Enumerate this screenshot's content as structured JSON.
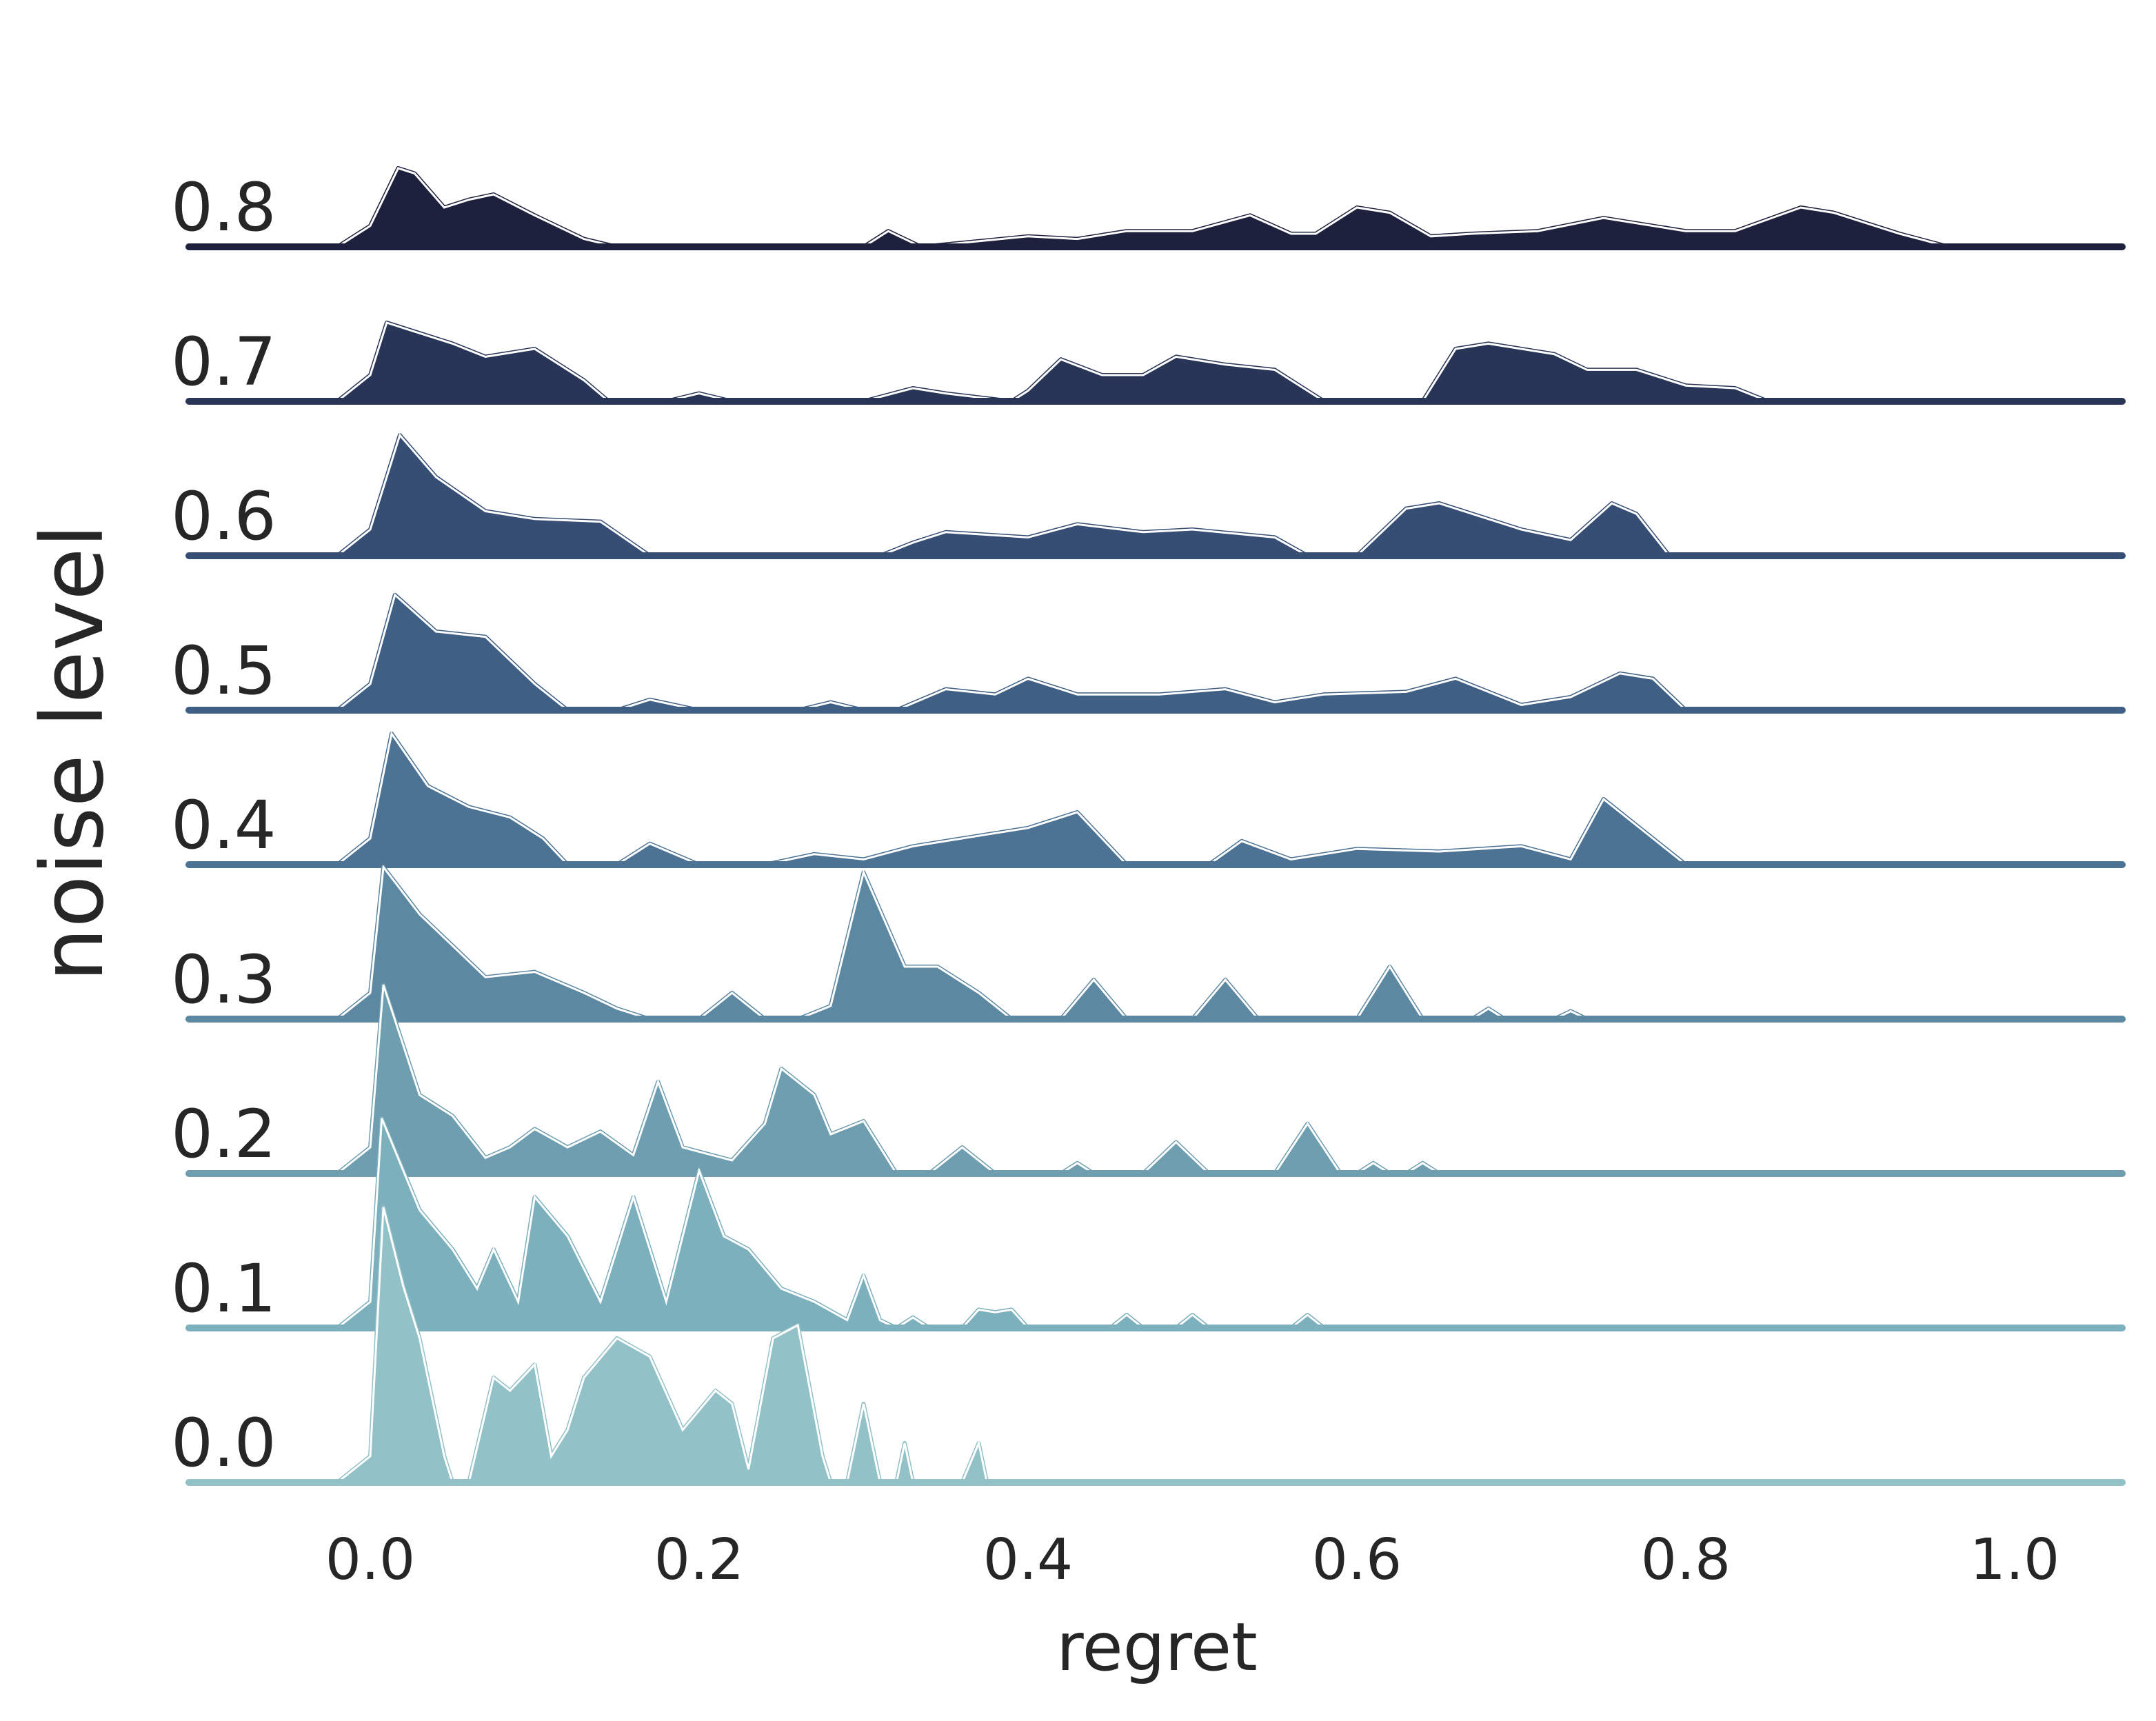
{
  "chart_data": {
    "type": "area",
    "style": "ridgeline",
    "xlabel": "regret",
    "ylabel": "noise level",
    "xlim": [
      -0.11,
      1.07
    ],
    "x_ticks": [
      "0.0",
      "0.2",
      "0.4",
      "0.6",
      "0.8",
      "1.0"
    ],
    "x_tick_values": [
      0.0,
      0.2,
      0.4,
      0.6,
      0.8,
      1.0
    ],
    "grid": false,
    "series": [
      {
        "name": "0.8",
        "color": "#1e213d",
        "points": [
          [
            -0.02,
            0
          ],
          [
            0.0,
            0.08
          ],
          [
            0.017,
            0.3
          ],
          [
            0.027,
            0.28
          ],
          [
            0.045,
            0.15
          ],
          [
            0.06,
            0.18
          ],
          [
            0.075,
            0.2
          ],
          [
            0.1,
            0.12
          ],
          [
            0.13,
            0.03
          ],
          [
            0.15,
            0
          ],
          [
            0.3,
            0
          ],
          [
            0.315,
            0.06
          ],
          [
            0.335,
            0
          ],
          [
            0.4,
            0.04
          ],
          [
            0.43,
            0.03
          ],
          [
            0.46,
            0.06
          ],
          [
            0.5,
            0.06
          ],
          [
            0.535,
            0.12
          ],
          [
            0.56,
            0.05
          ],
          [
            0.575,
            0.05
          ],
          [
            0.6,
            0.15
          ],
          [
            0.62,
            0.13
          ],
          [
            0.645,
            0.04
          ],
          [
            0.67,
            0.05
          ],
          [
            0.71,
            0.06
          ],
          [
            0.75,
            0.11
          ],
          [
            0.8,
            0.06
          ],
          [
            0.83,
            0.06
          ],
          [
            0.87,
            0.15
          ],
          [
            0.89,
            0.13
          ],
          [
            0.93,
            0.05
          ],
          [
            0.96,
            0
          ],
          [
            1.065,
            0
          ]
        ]
      },
      {
        "name": "0.7",
        "color": "#283557",
        "points": [
          [
            -0.02,
            0
          ],
          [
            0.0,
            0.1
          ],
          [
            0.01,
            0.3
          ],
          [
            0.025,
            0.27
          ],
          [
            0.05,
            0.22
          ],
          [
            0.07,
            0.17
          ],
          [
            0.1,
            0.2
          ],
          [
            0.13,
            0.08
          ],
          [
            0.145,
            0
          ],
          [
            0.18,
            0
          ],
          [
            0.2,
            0.03
          ],
          [
            0.22,
            0
          ],
          [
            0.3,
            0
          ],
          [
            0.33,
            0.05
          ],
          [
            0.35,
            0.03
          ],
          [
            0.39,
            0
          ],
          [
            0.4,
            0.04
          ],
          [
            0.42,
            0.16
          ],
          [
            0.445,
            0.1
          ],
          [
            0.47,
            0.1
          ],
          [
            0.49,
            0.17
          ],
          [
            0.52,
            0.14
          ],
          [
            0.55,
            0.12
          ],
          [
            0.58,
            0
          ],
          [
            0.64,
            0
          ],
          [
            0.66,
            0.2
          ],
          [
            0.68,
            0.22
          ],
          [
            0.72,
            0.18
          ],
          [
            0.74,
            0.12
          ],
          [
            0.77,
            0.12
          ],
          [
            0.8,
            0.06
          ],
          [
            0.83,
            0.05
          ],
          [
            0.85,
            0
          ],
          [
            1.065,
            0
          ]
        ]
      },
      {
        "name": "0.6",
        "color": "#364d74",
        "points": [
          [
            -0.02,
            0
          ],
          [
            0.0,
            0.1
          ],
          [
            0.018,
            0.46
          ],
          [
            0.04,
            0.3
          ],
          [
            0.07,
            0.17
          ],
          [
            0.1,
            0.14
          ],
          [
            0.14,
            0.13
          ],
          [
            0.17,
            0
          ],
          [
            0.31,
            0
          ],
          [
            0.33,
            0.05
          ],
          [
            0.35,
            0.09
          ],
          [
            0.4,
            0.07
          ],
          [
            0.43,
            0.12
          ],
          [
            0.47,
            0.09
          ],
          [
            0.5,
            0.1
          ],
          [
            0.55,
            0.07
          ],
          [
            0.57,
            0
          ],
          [
            0.6,
            0
          ],
          [
            0.63,
            0.18
          ],
          [
            0.65,
            0.2
          ],
          [
            0.7,
            0.1
          ],
          [
            0.73,
            0.06
          ],
          [
            0.755,
            0.2
          ],
          [
            0.77,
            0.16
          ],
          [
            0.79,
            0
          ],
          [
            1.065,
            0
          ]
        ]
      },
      {
        "name": "0.5",
        "color": "#3f5f84",
        "points": [
          [
            -0.02,
            0
          ],
          [
            0.0,
            0.1
          ],
          [
            0.015,
            0.44
          ],
          [
            0.04,
            0.3
          ],
          [
            0.07,
            0.28
          ],
          [
            0.1,
            0.1
          ],
          [
            0.12,
            0
          ],
          [
            0.15,
            0
          ],
          [
            0.17,
            0.04
          ],
          [
            0.2,
            0
          ],
          [
            0.26,
            0
          ],
          [
            0.28,
            0.03
          ],
          [
            0.3,
            0
          ],
          [
            0.32,
            0
          ],
          [
            0.35,
            0.08
          ],
          [
            0.38,
            0.06
          ],
          [
            0.4,
            0.12
          ],
          [
            0.43,
            0.06
          ],
          [
            0.48,
            0.06
          ],
          [
            0.52,
            0.08
          ],
          [
            0.55,
            0.03
          ],
          [
            0.58,
            0.06
          ],
          [
            0.63,
            0.07
          ],
          [
            0.66,
            0.12
          ],
          [
            0.7,
            0.02
          ],
          [
            0.73,
            0.05
          ],
          [
            0.76,
            0.14
          ],
          [
            0.78,
            0.12
          ],
          [
            0.8,
            0
          ],
          [
            1.065,
            0
          ]
        ]
      },
      {
        "name": "0.4",
        "color": "#4c7294",
        "points": [
          [
            -0.02,
            0
          ],
          [
            0.0,
            0.1
          ],
          [
            0.013,
            0.5
          ],
          [
            0.035,
            0.3
          ],
          [
            0.06,
            0.22
          ],
          [
            0.085,
            0.18
          ],
          [
            0.105,
            0.1
          ],
          [
            0.12,
            0
          ],
          [
            0.15,
            0
          ],
          [
            0.17,
            0.08
          ],
          [
            0.2,
            0
          ],
          [
            0.24,
            0
          ],
          [
            0.27,
            0.04
          ],
          [
            0.3,
            0.02
          ],
          [
            0.33,
            0.07
          ],
          [
            0.36,
            0.1
          ],
          [
            0.4,
            0.14
          ],
          [
            0.43,
            0.2
          ],
          [
            0.46,
            0
          ],
          [
            0.51,
            0
          ],
          [
            0.53,
            0.09
          ],
          [
            0.56,
            0.02
          ],
          [
            0.6,
            0.06
          ],
          [
            0.65,
            0.05
          ],
          [
            0.7,
            0.07
          ],
          [
            0.73,
            0.02
          ],
          [
            0.75,
            0.25
          ],
          [
            0.78,
            0.1
          ],
          [
            0.8,
            0
          ],
          [
            1.065,
            0
          ]
        ]
      },
      {
        "name": "0.3",
        "color": "#5d88a2",
        "points": [
          [
            -0.02,
            0
          ],
          [
            0.0,
            0.1
          ],
          [
            0.008,
            0.58
          ],
          [
            0.03,
            0.4
          ],
          [
            0.05,
            0.28
          ],
          [
            0.07,
            0.16
          ],
          [
            0.1,
            0.18
          ],
          [
            0.13,
            0.1
          ],
          [
            0.15,
            0.04
          ],
          [
            0.17,
            0
          ],
          [
            0.2,
            0
          ],
          [
            0.22,
            0.1
          ],
          [
            0.24,
            0
          ],
          [
            0.26,
            0
          ],
          [
            0.28,
            0.05
          ],
          [
            0.3,
            0.56
          ],
          [
            0.325,
            0.2
          ],
          [
            0.345,
            0.2
          ],
          [
            0.37,
            0.1
          ],
          [
            0.39,
            0
          ],
          [
            0.42,
            0
          ],
          [
            0.44,
            0.15
          ],
          [
            0.46,
            0
          ],
          [
            0.5,
            0
          ],
          [
            0.52,
            0.15
          ],
          [
            0.54,
            0
          ],
          [
            0.6,
            0
          ],
          [
            0.62,
            0.2
          ],
          [
            0.64,
            0
          ],
          [
            0.67,
            0
          ],
          [
            0.68,
            0.04
          ],
          [
            0.69,
            0
          ],
          [
            0.72,
            0
          ],
          [
            0.73,
            0.03
          ],
          [
            0.74,
            0
          ],
          [
            1.065,
            0
          ]
        ]
      },
      {
        "name": "0.2",
        "color": "#6e9eaf",
        "points": [
          [
            -0.02,
            0
          ],
          [
            0.0,
            0.1
          ],
          [
            0.008,
            0.72
          ],
          [
            0.03,
            0.3
          ],
          [
            0.05,
            0.22
          ],
          [
            0.07,
            0.06
          ],
          [
            0.085,
            0.1
          ],
          [
            0.1,
            0.17
          ],
          [
            0.12,
            0.1
          ],
          [
            0.14,
            0.16
          ],
          [
            0.16,
            0.07
          ],
          [
            0.175,
            0.35
          ],
          [
            0.19,
            0.1
          ],
          [
            0.22,
            0.05
          ],
          [
            0.24,
            0.19
          ],
          [
            0.25,
            0.4
          ],
          [
            0.27,
            0.3
          ],
          [
            0.28,
            0.15
          ],
          [
            0.3,
            0.2
          ],
          [
            0.32,
            0
          ],
          [
            0.34,
            0
          ],
          [
            0.36,
            0.1
          ],
          [
            0.38,
            0
          ],
          [
            0.42,
            0
          ],
          [
            0.43,
            0.04
          ],
          [
            0.44,
            0
          ],
          [
            0.47,
            0
          ],
          [
            0.49,
            0.12
          ],
          [
            0.51,
            0
          ],
          [
            0.55,
            0
          ],
          [
            0.57,
            0.19
          ],
          [
            0.59,
            0
          ],
          [
            0.6,
            0
          ],
          [
            0.61,
            0.04
          ],
          [
            0.62,
            0
          ],
          [
            0.63,
            0
          ],
          [
            0.64,
            0.04
          ],
          [
            0.65,
            0
          ],
          [
            1.065,
            0
          ]
        ]
      },
      {
        "name": "0.1",
        "color": "#7cb0bd",
        "points": [
          [
            -0.02,
            0
          ],
          [
            0.0,
            0.1
          ],
          [
            0.007,
            0.8
          ],
          [
            0.03,
            0.45
          ],
          [
            0.05,
            0.3
          ],
          [
            0.065,
            0.15
          ],
          [
            0.075,
            0.3
          ],
          [
            0.09,
            0.1
          ],
          [
            0.1,
            0.5
          ],
          [
            0.12,
            0.35
          ],
          [
            0.14,
            0.1
          ],
          [
            0.16,
            0.5
          ],
          [
            0.17,
            0.3
          ],
          [
            0.18,
            0.1
          ],
          [
            0.2,
            0.6
          ],
          [
            0.215,
            0.35
          ],
          [
            0.23,
            0.3
          ],
          [
            0.25,
            0.15
          ],
          [
            0.27,
            0.1
          ],
          [
            0.29,
            0.03
          ],
          [
            0.3,
            0.2
          ],
          [
            0.31,
            0.03
          ],
          [
            0.32,
            0
          ],
          [
            0.33,
            0.04
          ],
          [
            0.34,
            0
          ],
          [
            0.36,
            0
          ],
          [
            0.37,
            0.07
          ],
          [
            0.38,
            0.06
          ],
          [
            0.39,
            0.07
          ],
          [
            0.4,
            0
          ],
          [
            0.45,
            0
          ],
          [
            0.46,
            0.05
          ],
          [
            0.47,
            0
          ],
          [
            0.49,
            0
          ],
          [
            0.5,
            0.05
          ],
          [
            0.51,
            0
          ],
          [
            0.56,
            0
          ],
          [
            0.57,
            0.05
          ],
          [
            0.58,
            0
          ],
          [
            1.065,
            0
          ]
        ]
      },
      {
        "name": "0.0",
        "color": "#92c1c7",
        "points": [
          [
            -0.02,
            0
          ],
          [
            0.0,
            0.1
          ],
          [
            0.008,
            1.05
          ],
          [
            0.02,
            0.75
          ],
          [
            0.03,
            0.55
          ],
          [
            0.045,
            0.1
          ],
          [
            0.05,
            0
          ],
          [
            0.06,
            0
          ],
          [
            0.075,
            0.4
          ],
          [
            0.085,
            0.35
          ],
          [
            0.1,
            0.45
          ],
          [
            0.11,
            0.1
          ],
          [
            0.12,
            0.2
          ],
          [
            0.13,
            0.4
          ],
          [
            0.15,
            0.55
          ],
          [
            0.17,
            0.48
          ],
          [
            0.19,
            0.2
          ],
          [
            0.21,
            0.35
          ],
          [
            0.22,
            0.3
          ],
          [
            0.23,
            0.05
          ],
          [
            0.245,
            0.55
          ],
          [
            0.26,
            0.6
          ],
          [
            0.275,
            0.1
          ],
          [
            0.28,
            0
          ],
          [
            0.29,
            0
          ],
          [
            0.3,
            0.3
          ],
          [
            0.31,
            0
          ],
          [
            0.32,
            0
          ],
          [
            0.325,
            0.15
          ],
          [
            0.33,
            0
          ],
          [
            0.36,
            0
          ],
          [
            0.37,
            0.15
          ],
          [
            0.375,
            0
          ],
          [
            1.065,
            0
          ]
        ]
      }
    ]
  }
}
